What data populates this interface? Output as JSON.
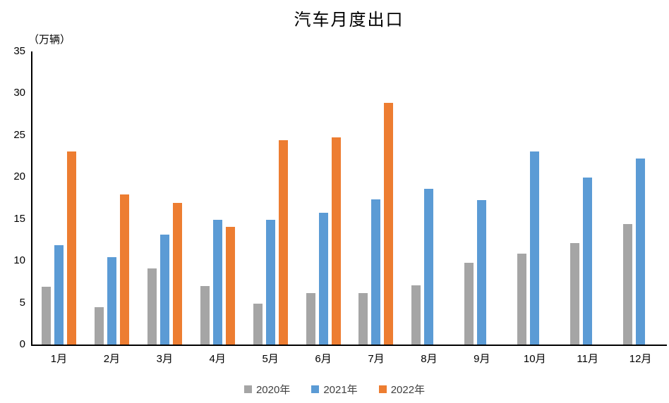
{
  "chart_data": {
    "type": "bar",
    "title": "汽车月度出口",
    "ylabel": "（万辆）",
    "categories": [
      "1月",
      "2月",
      "3月",
      "4月",
      "5月",
      "6月",
      "7月",
      "8月",
      "9月",
      "10月",
      "11月",
      "12月"
    ],
    "series": [
      {
        "name": "2020年",
        "color": "#A5A5A5",
        "values": [
          6.9,
          4.5,
          9.1,
          7.0,
          4.9,
          6.2,
          6.2,
          7.1,
          9.8,
          10.9,
          12.2,
          14.5
        ]
      },
      {
        "name": "2021年",
        "color": "#5B9BD5",
        "values": [
          11.9,
          10.5,
          13.2,
          15.0,
          15.0,
          15.8,
          17.4,
          18.7,
          17.3,
          23.2,
          20.0,
          22.3
        ]
      },
      {
        "name": "2022年",
        "color": "#ED7D31",
        "values": [
          23.2,
          18.0,
          17.0,
          14.1,
          24.5,
          24.9,
          29.0,
          null,
          null,
          null,
          null,
          null
        ]
      }
    ],
    "ylim": [
      0,
      35
    ],
    "yticks": [
      0,
      5,
      10,
      15,
      20,
      25,
      30,
      35
    ],
    "ytick_interval": 5,
    "grid": false,
    "legend_position": "bottom",
    "axis_color": "#000000"
  }
}
